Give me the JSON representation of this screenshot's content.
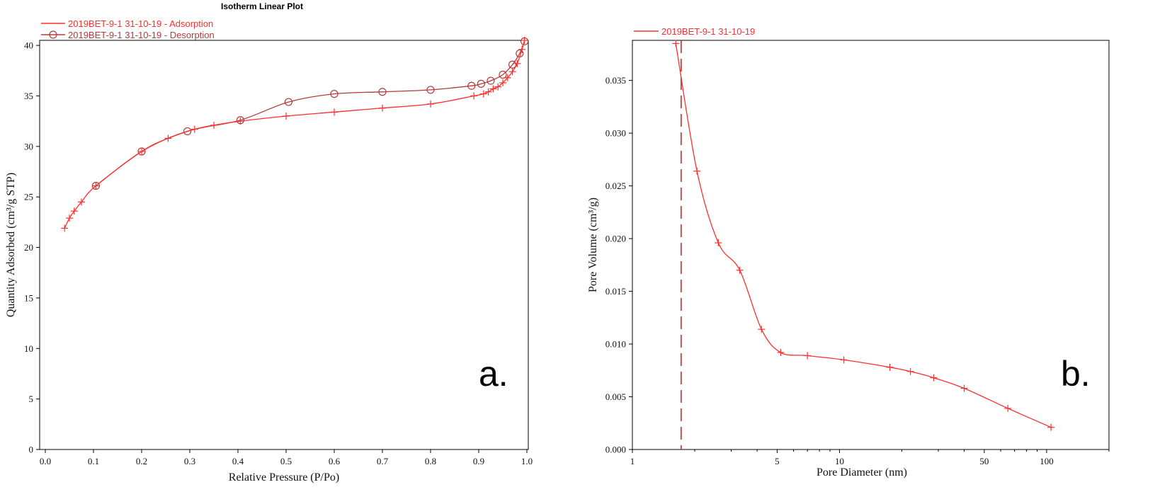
{
  "colors": {
    "adsorption": "#ff2e2e",
    "desorption": "#b33b3b",
    "adsorption_light": "#ff7a7a",
    "pore_series": "#ff2e2e",
    "frame": "#000000",
    "dashed_marker": "#cc2a2a"
  },
  "chart_data": [
    {
      "type": "line",
      "title": "Isotherm Linear Plot",
      "xlabel": "Relative Pressure (P/Po)",
      "ylabel": "Quantity Adsorbed (cm³/g STP)",
      "panel_label": "a.",
      "xlim": [
        0,
        1.0
      ],
      "ylim": [
        0,
        40.5
      ],
      "xticks": [
        0.0,
        0.1,
        0.2,
        0.3,
        0.4,
        0.5,
        0.6,
        0.7,
        0.8,
        0.9,
        1.0
      ],
      "xtick_labels": [
        "0.0",
        "0.1",
        "0.2",
        "0.3",
        "0.4",
        "0.5",
        "0.6",
        "0.7",
        "0.8",
        "0.9",
        "1.0"
      ],
      "yticks": [
        0,
        5,
        10,
        15,
        20,
        25,
        30,
        35,
        40
      ],
      "ytick_labels": [
        "0",
        "5",
        "10",
        "15",
        "20",
        "25",
        "30",
        "35",
        "40"
      ],
      "grid": false,
      "legend_position": "top-left",
      "series": [
        {
          "name": "2019BET-9-1 31-10-19 - Adsorption",
          "marker": "plus",
          "x": [
            0.04,
            0.05,
            0.06,
            0.075,
            0.105,
            0.2,
            0.255,
            0.31,
            0.35,
            0.405,
            0.5,
            0.6,
            0.7,
            0.8,
            0.89,
            0.91,
            0.92,
            0.93,
            0.94,
            0.95,
            0.96,
            0.97,
            0.98,
            0.99,
            0.995
          ],
          "y": [
            21.9,
            22.9,
            23.6,
            24.5,
            26.1,
            29.5,
            30.8,
            31.7,
            32.1,
            32.5,
            33.0,
            33.4,
            33.8,
            34.2,
            35.0,
            35.2,
            35.4,
            35.7,
            35.9,
            36.3,
            36.8,
            37.4,
            38.2,
            39.6,
            40.5
          ]
        },
        {
          "name": "2019BET-9-1 31-10-19 - Desorption",
          "marker": "circle",
          "x": [
            0.105,
            0.2,
            0.295,
            0.405,
            0.505,
            0.6,
            0.7,
            0.8,
            0.885,
            0.905,
            0.925,
            0.95,
            0.97,
            0.985,
            0.995
          ],
          "y": [
            26.1,
            29.5,
            31.5,
            32.6,
            34.4,
            35.2,
            35.4,
            35.6,
            36.0,
            36.2,
            36.5,
            37.1,
            38.1,
            39.2,
            40.4
          ]
        }
      ]
    },
    {
      "type": "line",
      "xlabel": "Pore Diameter (nm)",
      "ylabel": "Pore Volume (cm³/g)",
      "panel_label": "b.",
      "xscale": "log",
      "xlim": [
        1,
        200
      ],
      "ylim": [
        0,
        0.0388
      ],
      "xticks": [
        1,
        5,
        10,
        50,
        100
      ],
      "xtick_labels": [
        "1",
        "5",
        "10",
        "50",
        "100"
      ],
      "yticks": [
        0.0,
        0.005,
        0.01,
        0.015,
        0.02,
        0.025,
        0.03,
        0.035
      ],
      "ytick_labels": [
        "0.000",
        "0.005",
        "0.010",
        "0.015",
        "0.020",
        "0.025",
        "0.030",
        "0.035"
      ],
      "grid": false,
      "legend_position": "top-left",
      "vertical_dashed_line_x": 1.72,
      "series": [
        {
          "name": "2019BET-9-1 31-10-19",
          "marker": "plus",
          "x": [
            1.62,
            2.05,
            2.6,
            3.3,
            4.2,
            5.2,
            7.0,
            10.5,
            17.5,
            22.0,
            28.5,
            40.0,
            65.0,
            105.0
          ],
          "y": [
            0.0385,
            0.0264,
            0.0196,
            0.017,
            0.0114,
            0.0092,
            0.0089,
            0.0085,
            0.0078,
            0.0074,
            0.0068,
            0.0058,
            0.0039,
            0.0021
          ]
        }
      ]
    }
  ]
}
